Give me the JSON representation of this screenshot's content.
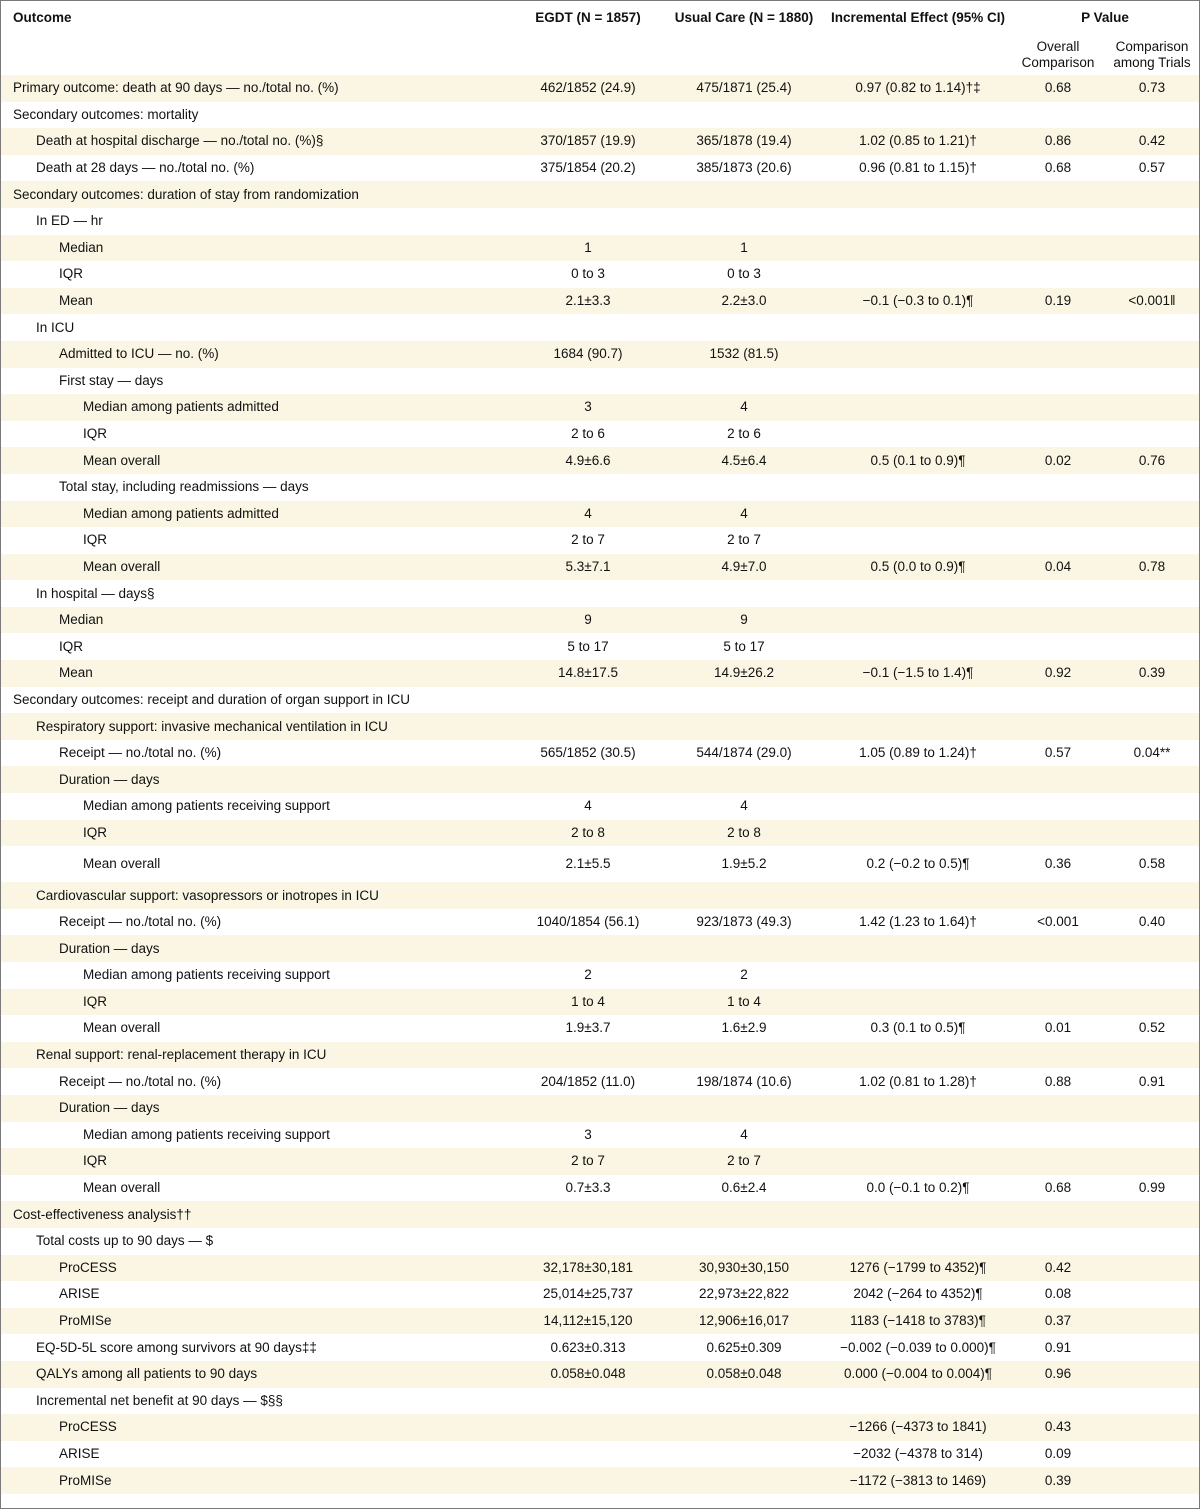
{
  "header": {
    "outcome": "Outcome",
    "egdt": "EGDT (N = 1857)",
    "usual_care": "Usual Care (N = 1880)",
    "incremental": "Incremental Effect (95% CI)",
    "pvalue": "P Value",
    "overall_comparison": "Overall Comparison",
    "comparison_among_trials": "Comparison among Trials"
  },
  "rows": [
    {
      "label": "Primary outcome: death at 90 days — no./total no. (%)",
      "indent": 0,
      "egdt": "462/1852 (24.9)",
      "usual_care": "475/1871 (25.4)",
      "incremental": "0.97 (0.82 to 1.14)†‡",
      "p_overall": "0.68",
      "p_trials": "0.73"
    },
    {
      "label": "Secondary outcomes: mortality",
      "indent": 0,
      "egdt": "",
      "usual_care": "",
      "incremental": "",
      "p_overall": "",
      "p_trials": ""
    },
    {
      "label": "Death at hospital discharge — no./total no. (%)§",
      "indent": 1,
      "egdt": "370/1857 (19.9)",
      "usual_care": "365/1878 (19.4)",
      "incremental": "1.02 (0.85 to 1.21)†",
      "p_overall": "0.86",
      "p_trials": "0.42"
    },
    {
      "label": "Death at 28 days — no./total no. (%)",
      "indent": 1,
      "egdt": "375/1854 (20.2)",
      "usual_care": "385/1873 (20.6)",
      "incremental": "0.96 (0.81 to 1.15)†",
      "p_overall": "0.68",
      "p_trials": "0.57"
    },
    {
      "label": "Secondary outcomes: duration of stay from randomization",
      "indent": 0,
      "egdt": "",
      "usual_care": "",
      "incremental": "",
      "p_overall": "",
      "p_trials": ""
    },
    {
      "label": "In ED — hr",
      "indent": 1,
      "egdt": "",
      "usual_care": "",
      "incremental": "",
      "p_overall": "",
      "p_trials": ""
    },
    {
      "label": "Median",
      "indent": 2,
      "egdt": "1",
      "usual_care": "1",
      "incremental": "",
      "p_overall": "",
      "p_trials": ""
    },
    {
      "label": "IQR",
      "indent": 2,
      "egdt": "0 to 3",
      "usual_care": "0 to 3",
      "incremental": "",
      "p_overall": "",
      "p_trials": ""
    },
    {
      "label": "Mean",
      "indent": 2,
      "egdt": "2.1±3.3",
      "usual_care": "2.2±3.0",
      "incremental": "−0.1 (−0.3 to 0.1)¶",
      "p_overall": "0.19",
      "p_trials": "<0.001‖"
    },
    {
      "label": "In ICU",
      "indent": 1,
      "egdt": "",
      "usual_care": "",
      "incremental": "",
      "p_overall": "",
      "p_trials": ""
    },
    {
      "label": "Admitted to ICU — no. (%)",
      "indent": 2,
      "egdt": "1684 (90.7)",
      "usual_care": "1532 (81.5)",
      "incremental": "",
      "p_overall": "",
      "p_trials": ""
    },
    {
      "label": "First stay — days",
      "indent": 2,
      "egdt": "",
      "usual_care": "",
      "incremental": "",
      "p_overall": "",
      "p_trials": ""
    },
    {
      "label": "Median among patients admitted",
      "indent": 3,
      "egdt": "3",
      "usual_care": "4",
      "incremental": "",
      "p_overall": "",
      "p_trials": ""
    },
    {
      "label": "IQR",
      "indent": 3,
      "egdt": "2 to 6",
      "usual_care": "2 to 6",
      "incremental": "",
      "p_overall": "",
      "p_trials": ""
    },
    {
      "label": "Mean overall",
      "indent": 3,
      "egdt": "4.9±6.6",
      "usual_care": "4.5±6.4",
      "incremental": "0.5 (0.1 to 0.9)¶",
      "p_overall": "0.02",
      "p_trials": "0.76"
    },
    {
      "label": "Total stay, including readmissions — days",
      "indent": 2,
      "egdt": "",
      "usual_care": "",
      "incremental": "",
      "p_overall": "",
      "p_trials": ""
    },
    {
      "label": "Median among patients admitted",
      "indent": 3,
      "egdt": "4",
      "usual_care": "4",
      "incremental": "",
      "p_overall": "",
      "p_trials": ""
    },
    {
      "label": "IQR",
      "indent": 3,
      "egdt": "2 to 7",
      "usual_care": "2 to 7",
      "incremental": "",
      "p_overall": "",
      "p_trials": ""
    },
    {
      "label": "Mean overall",
      "indent": 3,
      "egdt": "5.3±7.1",
      "usual_care": "4.9±7.0",
      "incremental": "0.5 (0.0 to 0.9)¶",
      "p_overall": "0.04",
      "p_trials": "0.78"
    },
    {
      "label": "In hospital — days§",
      "indent": 1,
      "egdt": "",
      "usual_care": "",
      "incremental": "",
      "p_overall": "",
      "p_trials": ""
    },
    {
      "label": "Median",
      "indent": 2,
      "egdt": "9",
      "usual_care": "9",
      "incremental": "",
      "p_overall": "",
      "p_trials": ""
    },
    {
      "label": "IQR",
      "indent": 2,
      "egdt": "5 to 17",
      "usual_care": "5 to 17",
      "incremental": "",
      "p_overall": "",
      "p_trials": ""
    },
    {
      "label": "Mean",
      "indent": 2,
      "egdt": "14.8±17.5",
      "usual_care": "14.9±26.2",
      "incremental": "−0.1 (−1.5 to 1.4)¶",
      "p_overall": "0.92",
      "p_trials": "0.39"
    },
    {
      "label": "Secondary outcomes: receipt and duration of organ support in ICU",
      "indent": 0,
      "egdt": "",
      "usual_care": "",
      "incremental": "",
      "p_overall": "",
      "p_trials": ""
    },
    {
      "label": "Respiratory support: invasive mechanical ventilation in ICU",
      "indent": 1,
      "egdt": "",
      "usual_care": "",
      "incremental": "",
      "p_overall": "",
      "p_trials": ""
    },
    {
      "label": "Receipt — no./total no. (%)",
      "indent": 2,
      "egdt": "565/1852 (30.5)",
      "usual_care": "544/1874 (29.0)",
      "incremental": "1.05 (0.89 to 1.24)†",
      "p_overall": "0.57",
      "p_trials": "0.04**"
    },
    {
      "label": "Duration — days",
      "indent": 2,
      "egdt": "",
      "usual_care": "",
      "incremental": "",
      "p_overall": "",
      "p_trials": ""
    },
    {
      "label": "Median among patients receiving support",
      "indent": 3,
      "egdt": "4",
      "usual_care": "4",
      "incremental": "",
      "p_overall": "",
      "p_trials": ""
    },
    {
      "label": "IQR",
      "indent": 3,
      "egdt": "2 to 8",
      "usual_care": "2 to 8",
      "incremental": "",
      "p_overall": "",
      "p_trials": ""
    },
    {
      "label": "Mean overall",
      "indent": 3,
      "egdt": "2.1±5.5",
      "usual_care": "1.9±5.2",
      "incremental": "0.2 (−0.2 to 0.5)¶",
      "p_overall": "0.36",
      "p_trials": "0.58"
    },
    {
      "label": "Cardiovascular support: vasopressors or inotropes in ICU",
      "indent": 1,
      "egdt": "",
      "usual_care": "",
      "incremental": "",
      "p_overall": "",
      "p_trials": ""
    },
    {
      "label": "Receipt — no./total no. (%)",
      "indent": 2,
      "egdt": "1040/1854 (56.1)",
      "usual_care": "923/1873 (49.3)",
      "incremental": "1.42 (1.23 to 1.64)†",
      "p_overall": "<0.001",
      "p_trials": "0.40"
    },
    {
      "label": "Duration — days",
      "indent": 2,
      "egdt": "",
      "usual_care": "",
      "incremental": "",
      "p_overall": "",
      "p_trials": ""
    },
    {
      "label": "Median among patients receiving support",
      "indent": 3,
      "egdt": "2",
      "usual_care": "2",
      "incremental": "",
      "p_overall": "",
      "p_trials": ""
    },
    {
      "label": "IQR",
      "indent": 3,
      "egdt": "1 to 4",
      "usual_care": "1 to 4",
      "incremental": "",
      "p_overall": "",
      "p_trials": ""
    },
    {
      "label": "Mean overall",
      "indent": 3,
      "egdt": "1.9±3.7",
      "usual_care": "1.6±2.9",
      "incremental": "0.3 (0.1 to 0.5)¶",
      "p_overall": "0.01",
      "p_trials": "0.52"
    },
    {
      "label": "Renal support: renal-replacement therapy in ICU",
      "indent": 1,
      "egdt": "",
      "usual_care": "",
      "incremental": "",
      "p_overall": "",
      "p_trials": ""
    },
    {
      "label": "Receipt — no./total no. (%)",
      "indent": 2,
      "egdt": "204/1852 (11.0)",
      "usual_care": "198/1874 (10.6)",
      "incremental": "1.02 (0.81 to 1.28)†",
      "p_overall": "0.88",
      "p_trials": "0.91"
    },
    {
      "label": "Duration — days",
      "indent": 2,
      "egdt": "",
      "usual_care": "",
      "incremental": "",
      "p_overall": "",
      "p_trials": ""
    },
    {
      "label": "Median among patients receiving support",
      "indent": 3,
      "egdt": "3",
      "usual_care": "4",
      "incremental": "",
      "p_overall": "",
      "p_trials": ""
    },
    {
      "label": "IQR",
      "indent": 3,
      "egdt": "2 to 7",
      "usual_care": "2 to 7",
      "incremental": "",
      "p_overall": "",
      "p_trials": ""
    },
    {
      "label": "Mean overall",
      "indent": 3,
      "egdt": "0.7±3.3",
      "usual_care": "0.6±2.4",
      "incremental": "0.0 (−0.1 to 0.2)¶",
      "p_overall": "0.68",
      "p_trials": "0.99"
    },
    {
      "label": "Cost-effectiveness analysis††",
      "indent": 0,
      "egdt": "",
      "usual_care": "",
      "incremental": "",
      "p_overall": "",
      "p_trials": ""
    },
    {
      "label": "Total costs up to 90 days — $",
      "indent": 1,
      "egdt": "",
      "usual_care": "",
      "incremental": "",
      "p_overall": "",
      "p_trials": ""
    },
    {
      "label": "ProCESS",
      "indent": 2,
      "egdt": "32,178±30,181",
      "usual_care": "30,930±30,150",
      "incremental": "1276 (−1799 to 4352)¶",
      "p_overall": "0.42",
      "p_trials": ""
    },
    {
      "label": "ARISE",
      "indent": 2,
      "egdt": "25,014±25,737",
      "usual_care": "22,973±22,822",
      "incremental": "2042 (−264 to 4352)¶",
      "p_overall": "0.08",
      "p_trials": ""
    },
    {
      "label": "ProMISe",
      "indent": 2,
      "egdt": "14,112±15,120",
      "usual_care": "12,906±16,017",
      "incremental": "1183 (−1418 to 3783)¶",
      "p_overall": "0.37",
      "p_trials": ""
    },
    {
      "label": "EQ-5D-5L score among survivors at 90 days‡‡",
      "indent": 1,
      "egdt": "0.623±0.313",
      "usual_care": "0.625±0.309",
      "incremental": "−0.002 (−0.039 to 0.000)¶",
      "p_overall": "0.91",
      "p_trials": ""
    },
    {
      "label": "QALYs among all patients to 90 days",
      "indent": 1,
      "egdt": "0.058±0.048",
      "usual_care": "0.058±0.048",
      "incremental": "0.000 (−0.004 to 0.004)¶",
      "p_overall": "0.96",
      "p_trials": ""
    },
    {
      "label": "Incremental net benefit at 90 days — $§§",
      "indent": 1,
      "egdt": "",
      "usual_care": "",
      "incremental": "",
      "p_overall": "",
      "p_trials": ""
    },
    {
      "label": "ProCESS",
      "indent": 2,
      "egdt": "",
      "usual_care": "",
      "incremental": "−1266 (−4373 to 1841)",
      "p_overall": "0.43",
      "p_trials": ""
    },
    {
      "label": "ARISE",
      "indent": 2,
      "egdt": "",
      "usual_care": "",
      "incremental": "−2032 (−4378 to 314)",
      "p_overall": "0.09",
      "p_trials": ""
    },
    {
      "label": "ProMISe",
      "indent": 2,
      "egdt": "",
      "usual_care": "",
      "incremental": "−1172 (−3813 to 1469)",
      "p_overall": "0.39",
      "p_trials": ""
    }
  ]
}
